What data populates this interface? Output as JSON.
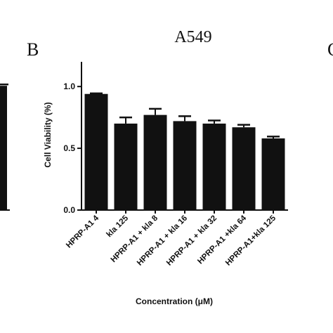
{
  "panel_label": "B",
  "neighbor_panel_label_fragment": "C",
  "chart_data": {
    "type": "bar",
    "title": "A549",
    "xlabel": "Concentration  (μM)",
    "ylabel": "Cell Viability (%)",
    "ylim": [
      0,
      1.2
    ],
    "yticks": [
      "0.0",
      "0.5",
      "1.0"
    ],
    "categories": [
      "HPRP-A1 4",
      "kla 125",
      "HPRP-A1 + kla 8",
      "HPRP-A1 + kla 16",
      "HPRP-A1 + kla 32",
      "HPRP-A1 +kla 64",
      "HPRP-A1+kla 125"
    ],
    "values": [
      0.94,
      0.7,
      0.77,
      0.72,
      0.7,
      0.67,
      0.58
    ],
    "errors": [
      0.005,
      0.05,
      0.05,
      0.04,
      0.025,
      0.02,
      0.015
    ],
    "bar_color": "#111111",
    "grid": false,
    "legend": "none"
  },
  "left_fragment": {
    "value": 1.0
  }
}
